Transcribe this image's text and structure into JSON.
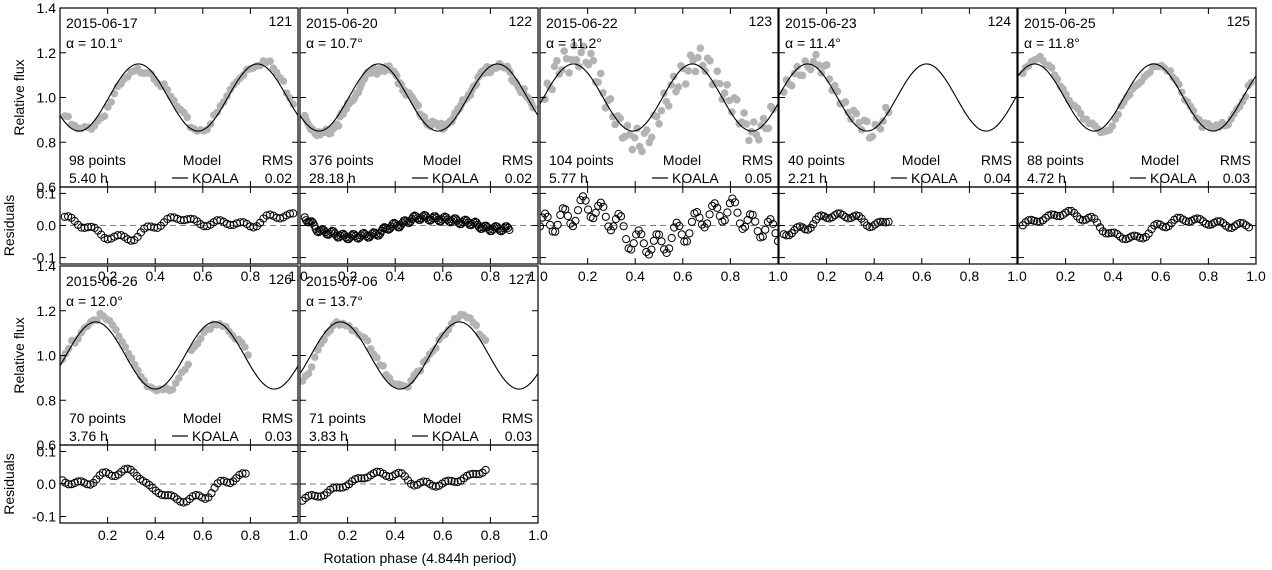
{
  "figure": {
    "xlabel": "Rotation phase (4.844h period)",
    "flux_ylabel": "Relative flux",
    "resid_ylabel": "Residuals",
    "model_header": "Model",
    "model_name": "KOALA",
    "rms_header": "RMS",
    "alpha_symbol": "α =",
    "x_ticks": [
      "0.2",
      "0.4",
      "0.6",
      "0.8",
      "1.0"
    ],
    "flux_ticks": [
      "1.4",
      "1.2",
      "1.0",
      "0.8",
      "0.6"
    ],
    "resid_ticks": [
      "0.1",
      "0.0",
      "-0.1"
    ],
    "colors": {
      "observed": "#b3b3b3",
      "model": "#000000",
      "residual": "#000000",
      "zero_line": "#808080"
    }
  },
  "chart_data": [
    {
      "type": "scatter",
      "panel": "121",
      "date": "2015-06-17",
      "alpha": "10.1",
      "points": "98 points",
      "duration": "5.40 h",
      "rms": "0.02",
      "xlim": [
        0,
        1
      ],
      "flux_ylim": [
        0.6,
        1.4
      ],
      "resid_ylim": [
        -0.12,
        0.12
      ],
      "model": {
        "mean": 1.0,
        "amp": 0.15,
        "peak1": 0.33,
        "peak2": 0.83,
        "x_range": [
          0.0,
          1.0
        ]
      },
      "observed": {
        "x_range": [
          0.02,
          0.98
        ],
        "n": 70,
        "offset": 0.0
      },
      "residuals": {
        "x_range": [
          0.02,
          0.98
        ],
        "n": 70,
        "knots_x": [
          0,
          0.1,
          0.2,
          0.3,
          0.4,
          0.5,
          0.6,
          0.7,
          0.8,
          0.9,
          1.0
        ],
        "knots_y": [
          0.03,
          0.0,
          -0.035,
          -0.04,
          0.0,
          0.025,
          0.005,
          0.01,
          0.0,
          0.03,
          0.03
        ]
      }
    },
    {
      "type": "scatter",
      "panel": "122",
      "date": "2015-06-20",
      "alpha": "10.7",
      "points": "376 points",
      "duration": "28.18 h",
      "rms": "0.02",
      "xlim": [
        0,
        1
      ],
      "flux_ylim": [
        0.6,
        1.4
      ],
      "resid_ylim": [
        -0.12,
        0.12
      ],
      "model": {
        "mean": 1.0,
        "amp": 0.15,
        "peak1": 0.33,
        "peak2": 0.83,
        "x_range": [
          0.0,
          1.0
        ]
      },
      "observed": {
        "x_range": [
          0.02,
          0.98
        ],
        "n": 150,
        "offset": 0.0
      },
      "residuals": {
        "x_range": [
          0.02,
          0.88
        ],
        "n": 150,
        "knots_x": [
          0,
          0.1,
          0.2,
          0.3,
          0.4,
          0.5,
          0.6,
          0.7,
          0.8,
          0.9,
          1.0
        ],
        "knots_y": [
          0.03,
          -0.02,
          -0.035,
          -0.03,
          0.0,
          0.025,
          0.02,
          0.01,
          -0.01,
          -0.01,
          0.0
        ]
      }
    },
    {
      "type": "scatter",
      "panel": "123",
      "date": "2015-06-22",
      "alpha": "11.2",
      "points": "104 points",
      "duration": "5.77 h",
      "rms": "0.05",
      "xlim": [
        0,
        1
      ],
      "flux_ylim": [
        0.6,
        1.4
      ],
      "resid_ylim": [
        -0.12,
        0.12
      ],
      "model": {
        "mean": 1.0,
        "amp": 0.15,
        "peak1": 0.14,
        "peak2": 0.64,
        "x_range": [
          0.0,
          1.0
        ]
      },
      "observed": {
        "x_range": [
          0.02,
          0.98
        ],
        "n": 95,
        "offset": 0.05
      },
      "residuals": {
        "x_range": [
          0.0,
          1.0
        ],
        "n": 95,
        "knots_x": [
          0,
          0.1,
          0.2,
          0.3,
          0.4,
          0.5,
          0.6,
          0.7,
          0.8,
          0.9,
          1.0
        ],
        "knots_y": [
          0.0,
          0.02,
          0.06,
          0.02,
          -0.05,
          -0.06,
          -0.02,
          0.03,
          0.05,
          0.0,
          -0.02
        ]
      }
    },
    {
      "type": "scatter",
      "panel": "124",
      "date": "2015-06-23",
      "alpha": "11.4",
      "points": "40 points",
      "duration": "2.21 h",
      "rms": "0.04",
      "xlim": [
        0,
        1
      ],
      "flux_ylim": [
        0.6,
        1.4
      ],
      "resid_ylim": [
        -0.12,
        0.12
      ],
      "model": {
        "mean": 1.0,
        "amp": 0.15,
        "peak1": 0.12,
        "peak2": 0.62,
        "x_range": [
          0.0,
          1.0
        ]
      },
      "observed": {
        "x_range": [
          0.02,
          0.46
        ],
        "n": 40,
        "offset": 0.03
      },
      "residuals": {
        "x_range": [
          0.02,
          0.46
        ],
        "n": 40,
        "knots_x": [
          0,
          0.1,
          0.2,
          0.3,
          0.4,
          0.5
        ],
        "knots_y": [
          -0.03,
          -0.01,
          0.03,
          0.03,
          0.0,
          0.03
        ]
      }
    },
    {
      "type": "scatter",
      "panel": "125",
      "date": "2015-06-25",
      "alpha": "11.8",
      "points": "88 points",
      "duration": "4.72 h",
      "rms": "0.03",
      "xlim": [
        0,
        1
      ],
      "flux_ylim": [
        0.6,
        1.4
      ],
      "resid_ylim": [
        -0.12,
        0.12
      ],
      "model": {
        "mean": 1.0,
        "amp": 0.15,
        "peak1": 0.57,
        "peak2": 1.07,
        "x_range": [
          0.0,
          1.0
        ]
      },
      "observed": {
        "x_range": [
          0.02,
          0.98
        ],
        "n": 80,
        "offset": 0.0
      },
      "residuals": {
        "x_range": [
          0.02,
          0.97
        ],
        "n": 80,
        "knots_x": [
          0,
          0.1,
          0.2,
          0.3,
          0.4,
          0.5,
          0.6,
          0.7,
          0.8,
          0.9,
          1.0
        ],
        "knots_y": [
          0.0,
          0.02,
          0.04,
          0.02,
          -0.03,
          -0.04,
          0.0,
          0.02,
          0.01,
          0.0,
          0.0
        ]
      }
    },
    {
      "type": "scatter",
      "panel": "126",
      "date": "2015-06-26",
      "alpha": "12.0",
      "points": "70 points",
      "duration": "3.76 h",
      "rms": "0.03",
      "xlim": [
        0,
        1
      ],
      "flux_ylim": [
        0.6,
        1.4
      ],
      "resid_ylim": [
        -0.12,
        0.12
      ],
      "model": {
        "mean": 1.0,
        "amp": 0.15,
        "peak1": 0.15,
        "peak2": 0.65,
        "x_range": [
          0.0,
          1.0
        ]
      },
      "observed": {
        "x_range": [
          0.01,
          0.79
        ],
        "n": 60,
        "offset": 0.0
      },
      "residuals": {
        "x_range": [
          0.01,
          0.78
        ],
        "n": 60,
        "knots_x": [
          0,
          0.1,
          0.2,
          0.3,
          0.4,
          0.5,
          0.6,
          0.7,
          0.8
        ],
        "knots_y": [
          0.01,
          0.0,
          0.03,
          0.04,
          -0.02,
          -0.05,
          -0.04,
          0.01,
          0.03
        ]
      }
    },
    {
      "type": "scatter",
      "panel": "127",
      "date": "2015-07-06",
      "alpha": "13.7",
      "points": "71 points",
      "duration": "3.83 h",
      "rms": "0.03",
      "xlim": [
        0,
        1
      ],
      "flux_ylim": [
        0.6,
        1.4
      ],
      "resid_ylim": [
        -0.12,
        0.12
      ],
      "model": {
        "mean": 1.0,
        "amp": 0.15,
        "peak1": 0.17,
        "peak2": 0.67,
        "x_range": [
          0.0,
          1.0
        ]
      },
      "observed": {
        "x_range": [
          0.01,
          0.78
        ],
        "n": 60,
        "offset": 0.0
      },
      "residuals": {
        "x_range": [
          0.01,
          0.78
        ],
        "n": 60,
        "knots_x": [
          0,
          0.1,
          0.2,
          0.3,
          0.4,
          0.5,
          0.6,
          0.7,
          0.8
        ],
        "knots_y": [
          -0.05,
          -0.03,
          0.0,
          0.03,
          0.03,
          0.0,
          0.0,
          0.02,
          0.05
        ]
      }
    }
  ]
}
